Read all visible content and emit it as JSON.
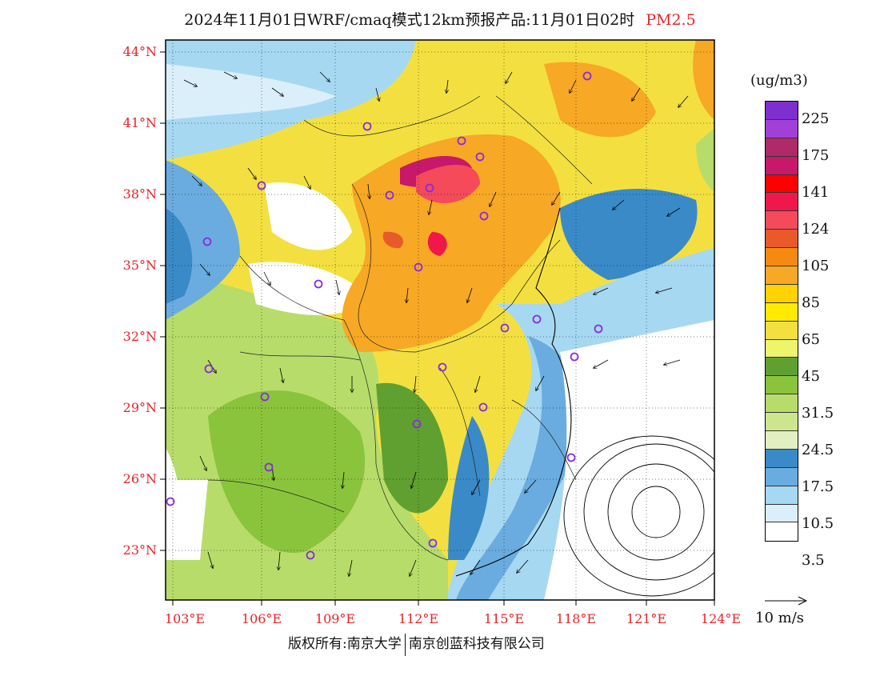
{
  "header": {
    "title": "2024年11月01日WRF/cmaq模式12km预报产品:11月01日02时",
    "variable": "PM2.5"
  },
  "map": {
    "lat_labels": [
      "44°N",
      "41°N",
      "38°N",
      "35°N",
      "32°N",
      "29°N",
      "26°N",
      "23°N"
    ],
    "lon_labels": [
      "103°E",
      "106°E",
      "109°E",
      "112°E",
      "115°E",
      "118°E",
      "121°E",
      "124°E"
    ]
  },
  "colorbar": {
    "unit": "(ug/m3)",
    "colors": [
      "#7f2fcf",
      "#a040d8",
      "#b02a6a",
      "#c8186a",
      "#ff0000",
      "#f0184a",
      "#f44a5a",
      "#e85a2a",
      "#f58a10",
      "#f7a825",
      "#ffd200",
      "#ffea00",
      "#f3e040",
      "#edf56a",
      "#60a030",
      "#8ac43c",
      "#b8dc6a",
      "#cde68e",
      "#e2efc0",
      "#3a8ac8",
      "#6aacdf",
      "#a6d8f2",
      "#dbeffa",
      "#ffffff"
    ],
    "tick_labels": [
      "225",
      "175",
      "141",
      "124",
      "105",
      "85",
      "65",
      "45",
      "31.5",
      "24.5",
      "17.5",
      "10.5",
      "3.5"
    ]
  },
  "wind_reference": {
    "label": "10 m/s"
  },
  "footer": {
    "copyright_left": "版权所有:南京大学",
    "copyright_right": "南京创蓝科技有限公司"
  },
  "colors": {
    "accent": "#e8222a"
  }
}
